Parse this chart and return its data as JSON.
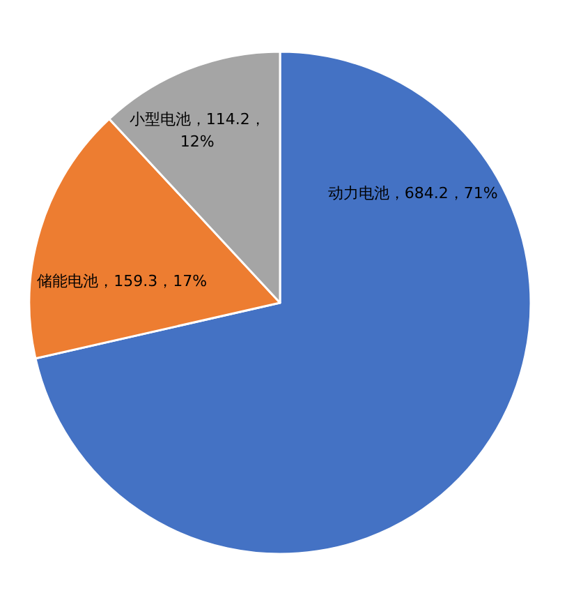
{
  "chart_data": {
    "type": "pie",
    "categories": [
      "动力电池",
      "储能电池",
      "小型电池"
    ],
    "values": [
      684.2,
      159.3,
      114.2
    ],
    "colors": [
      "#4472c4",
      "#ed7d31",
      "#a5a5a5"
    ],
    "value_labels": [
      "684.2，71%",
      "159.3，17%",
      "114.2，12%"
    ]
  }
}
